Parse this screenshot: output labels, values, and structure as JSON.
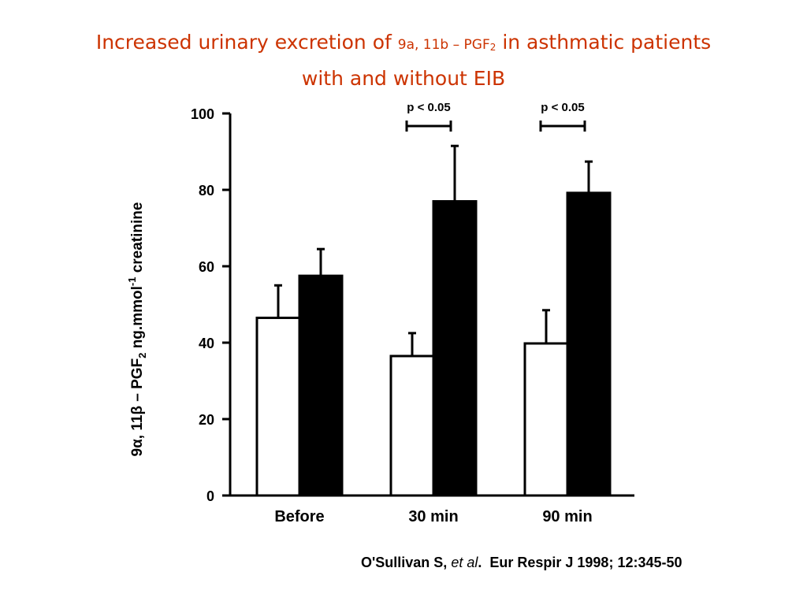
{
  "title": {
    "part1": "Increased urinary excretion of ",
    "compound_a": "9a, 11b – PGF",
    "compound_sub": "2",
    "part2": " in asthmatic patients",
    "line2": "with and without EIB"
  },
  "citation": {
    "authors": "O'Sullivan S, ",
    "etal": "et al",
    "period": ".",
    "journal": "  Eur Respir J 1998; 12:345-50"
  },
  "chart_data": {
    "type": "bar",
    "categories": [
      "Before",
      "30 min",
      "90 min"
    ],
    "series": [
      {
        "values": [
          46.5,
          36.5,
          39.8
        ],
        "errors": [
          8.5,
          6.0,
          8.7
        ],
        "color": "#ffffff"
      },
      {
        "values": [
          57.5,
          77.0,
          79.2
        ],
        "errors": [
          7.0,
          14.5,
          8.2
        ],
        "color": "#000000"
      }
    ],
    "ylabel": {
      "pre": "9α, 11β – PGF",
      "sub": "2",
      "mid": " ng.mmol",
      "sup": "-1",
      "post": " creatinine"
    },
    "ylim": [
      0,
      100
    ],
    "yticks": [
      0,
      20,
      40,
      60,
      80,
      100
    ],
    "annotations": [
      {
        "text": "p < 0.05",
        "category": "30 min"
      },
      {
        "text": "p < 0.05",
        "category": "90 min"
      }
    ],
    "grid": false,
    "legend": "none"
  }
}
